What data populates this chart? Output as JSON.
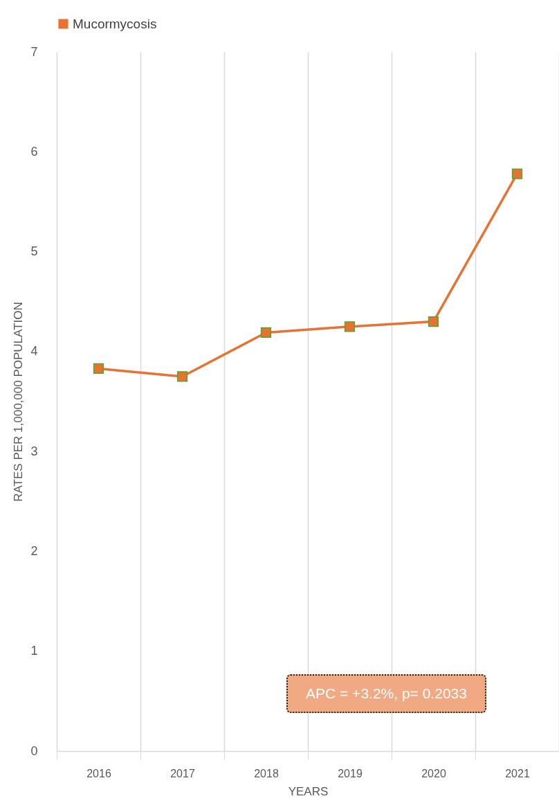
{
  "chart_data": {
    "type": "line",
    "xlabel": "YEARS",
    "ylabel": "RATES PER 1,000,000 POPULATION",
    "categories": [
      "2016",
      "2017",
      "2018",
      "2019",
      "2020",
      "2021"
    ],
    "series": [
      {
        "name": "Mucormycosis",
        "color": "#e97132",
        "values": [
          3.83,
          3.75,
          4.19,
          4.25,
          4.3,
          5.78
        ]
      }
    ],
    "ylim": [
      0,
      7
    ],
    "yticks": [
      0,
      1,
      2,
      3,
      4,
      5,
      6,
      7
    ],
    "grid": "x",
    "legend": "top",
    "marker": "square",
    "line_style": "solid",
    "annotations": [
      "APC = +3.2%, p= 0.2033"
    ]
  }
}
